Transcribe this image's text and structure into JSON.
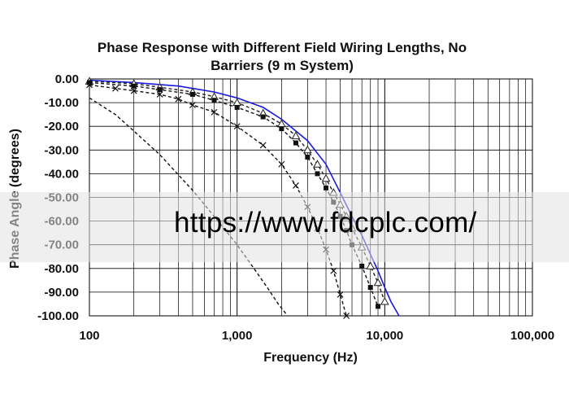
{
  "chart_data": {
    "type": "line",
    "title_lines": [
      "Phase Response with Different Field Wiring Lengths, No",
      "Barriers (9 m System)"
    ],
    "xlabel": "Frequency (Hz)",
    "ylabel": "Phase Angle (degrees)",
    "x_scale": "log",
    "xlim": [
      100,
      100000
    ],
    "ylim": [
      -100,
      0
    ],
    "x_ticks": [
      100,
      1000,
      10000,
      100000
    ],
    "x_tick_labels": [
      "100",
      "1,000",
      "10,000",
      "100,000"
    ],
    "y_ticks": [
      0,
      -10,
      -20,
      -30,
      -40,
      -50,
      -60,
      -70,
      -80,
      -90,
      -100
    ],
    "y_tick_labels": [
      "0.00",
      "-10.00",
      "-20.00",
      "-30.00",
      "-40.00",
      "-50.00",
      "-60.00",
      "-70.00",
      "-80.00",
      "-90.00",
      "-100.00"
    ],
    "grid": true,
    "series": [
      {
        "color": "#1a1adc",
        "style": "solid",
        "marker": "none",
        "x": [
          100,
          200,
          400,
          700,
          1000,
          1500,
          2000,
          3000,
          4000,
          5000,
          6000,
          7000,
          8000,
          9000,
          10000,
          11000,
          12500
        ],
        "y": [
          -0.5,
          -1.5,
          -3,
          -5.5,
          -8,
          -12,
          -17,
          -26,
          -36,
          -48,
          -58,
          -66,
          -74,
          -81,
          -88,
          -94,
          -100
        ]
      },
      {
        "color": "#222222",
        "style": "dashed",
        "marker": "triangle-open",
        "x": [
          100,
          200,
          300,
          500,
          700,
          1000,
          1500,
          2000,
          2500,
          3000,
          3500,
          4000,
          4500,
          5000,
          5500,
          6000,
          7000,
          8000,
          9000,
          10000
        ],
        "y": [
          -1,
          -2,
          -3.5,
          -5.5,
          -7.5,
          -10,
          -14.5,
          -19,
          -24,
          -30,
          -36,
          -42,
          -48,
          -53,
          -58,
          -63,
          -71,
          -79,
          -86,
          -94
        ]
      },
      {
        "color": "#111111",
        "style": "dashed",
        "marker": "square-filled",
        "x": [
          100,
          200,
          300,
          500,
          700,
          1000,
          1500,
          2000,
          2500,
          3000,
          3500,
          4000,
          4500,
          5000,
          5500,
          6000,
          7000,
          8000,
          9000
        ],
        "y": [
          -1.5,
          -3,
          -4.5,
          -6.5,
          -9,
          -12,
          -16,
          -21,
          -27,
          -33,
          -40,
          -46,
          -52,
          -58,
          -64,
          -70,
          -79,
          -88,
          -96
        ]
      },
      {
        "color": "#111111",
        "style": "dashed",
        "marker": "x",
        "x": [
          100,
          150,
          200,
          300,
          400,
          500,
          700,
          1000,
          1500,
          2000,
          2500,
          3000,
          3500,
          4000,
          4500,
          5000,
          5500
        ],
        "y": [
          -2.5,
          -4,
          -5,
          -6.5,
          -8.5,
          -11,
          -14,
          -20,
          -28,
          -36,
          -45,
          -54,
          -63,
          -72,
          -81,
          -91,
          -100
        ]
      },
      {
        "color": "#111111",
        "style": "dashed",
        "marker": "none",
        "x": [
          100,
          150,
          200,
          300,
          500,
          700,
          1000,
          1300,
          1600,
          1900,
          2200
        ],
        "y": [
          -8,
          -15,
          -22,
          -32,
          -47,
          -58,
          -70,
          -80,
          -88,
          -95,
          -100
        ]
      }
    ]
  },
  "watermark": "https://www.fdcplc.com/"
}
